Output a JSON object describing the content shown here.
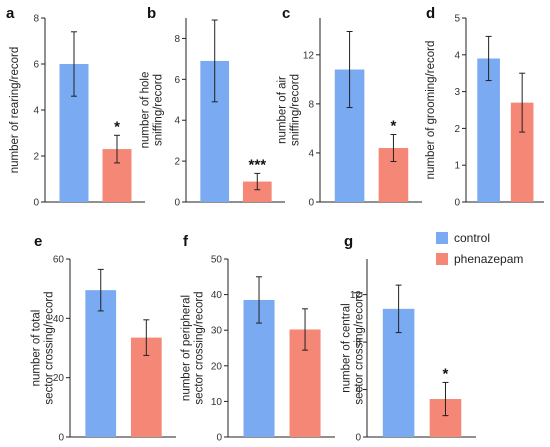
{
  "colors": {
    "control": "#79aaf2",
    "phenazepam": "#f48775"
  },
  "legend": {
    "control": "control",
    "phenazepam": "phenazepam"
  },
  "chart_data": [
    {
      "type": "bar",
      "panel": "a",
      "ylabel": [
        "number of rearing/record"
      ],
      "categories": [
        "control",
        "phenazepam"
      ],
      "values": [
        6.0,
        2.3
      ],
      "errors": [
        1.4,
        0.6
      ],
      "significance": [
        "",
        "*"
      ],
      "ylim": [
        0,
        8
      ],
      "yticks": [
        0,
        2,
        4,
        6,
        8
      ]
    },
    {
      "type": "bar",
      "panel": "b",
      "ylabel": [
        "number of hole",
        "sniffing/record"
      ],
      "categories": [
        "control",
        "phenazepam"
      ],
      "values": [
        6.9,
        1.0
      ],
      "errors": [
        2.0,
        0.4
      ],
      "significance": [
        "",
        "***"
      ],
      "ylim": [
        0,
        9
      ],
      "yticks": [
        0,
        2,
        4,
        6,
        8
      ]
    },
    {
      "type": "bar",
      "panel": "c",
      "ylabel": [
        "number of air",
        "sniffing/record"
      ],
      "categories": [
        "control",
        "phenazepam"
      ],
      "values": [
        10.8,
        4.4
      ],
      "errors": [
        3.1,
        1.1
      ],
      "significance": [
        "",
        "*"
      ],
      "ylim": [
        0,
        15
      ],
      "yticks": [
        0,
        4,
        8,
        12
      ]
    },
    {
      "type": "bar",
      "panel": "d",
      "ylabel": [
        "number of grooming/record"
      ],
      "categories": [
        "control",
        "phenazepam"
      ],
      "values": [
        3.9,
        2.7
      ],
      "errors": [
        0.6,
        0.8
      ],
      "significance": [
        "",
        ""
      ],
      "ylim": [
        0,
        5
      ],
      "yticks": [
        0,
        1,
        2,
        3,
        4,
        5
      ]
    },
    {
      "type": "bar",
      "panel": "e",
      "ylabel": [
        "number of total",
        "sector crossing/record"
      ],
      "categories": [
        "control",
        "phenazepam"
      ],
      "values": [
        49.5,
        33.5
      ],
      "errors": [
        7.0,
        6.0
      ],
      "significance": [
        "",
        ""
      ],
      "ylim": [
        0,
        60
      ],
      "yticks": [
        0,
        20,
        40,
        60
      ]
    },
    {
      "type": "bar",
      "panel": "f",
      "ylabel": [
        "number of peripheral",
        "sector crossing/record"
      ],
      "categories": [
        "control",
        "phenazepam"
      ],
      "values": [
        38.5,
        30.2
      ],
      "errors": [
        6.5,
        5.8
      ],
      "significance": [
        "",
        ""
      ],
      "ylim": [
        0,
        50
      ],
      "yticks": [
        0,
        10,
        20,
        30,
        40,
        50
      ]
    },
    {
      "type": "bar",
      "panel": "g",
      "ylabel": [
        "number of central",
        "sector crossing/record"
      ],
      "categories": [
        "control",
        "phenazepam"
      ],
      "values": [
        10.8,
        3.2
      ],
      "errors": [
        2.0,
        1.4
      ],
      "significance": [
        "",
        "*"
      ],
      "ylim": [
        0,
        15
      ],
      "yticks": [
        0,
        4,
        8,
        12
      ]
    }
  ]
}
